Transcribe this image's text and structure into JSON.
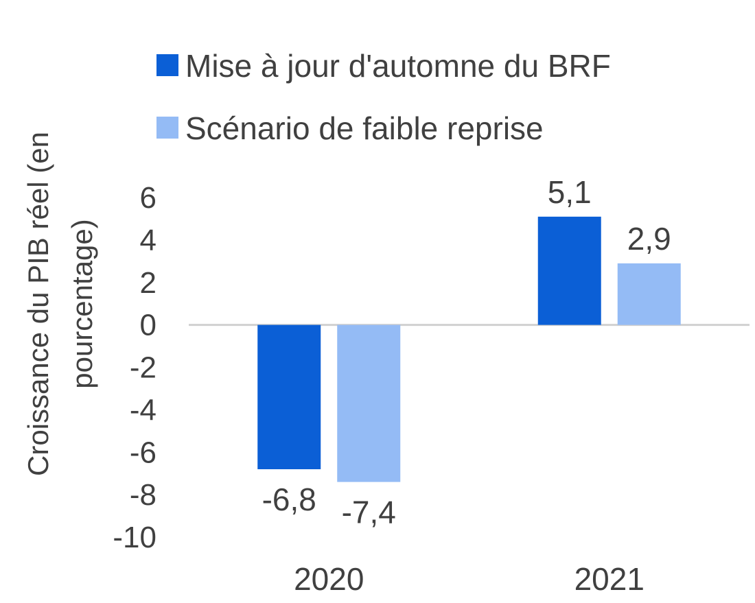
{
  "chart_data": {
    "type": "bar",
    "categories": [
      "2020",
      "2021"
    ],
    "series": [
      {
        "name": "Mise à jour d'automne du BRF",
        "values": [
          -6.8,
          5.1
        ],
        "labels": [
          "-6,8",
          "5,1"
        ],
        "color": "#0b5fd6"
      },
      {
        "name": "Scénario de faible reprise",
        "values": [
          -7.4,
          2.9
        ],
        "labels": [
          "-7,4",
          "2,9"
        ],
        "color": "#94bbf5"
      }
    ],
    "ylabel_lines": [
      "Croissance du PIB réel (en",
      "pourcentage)"
    ],
    "ylim": [
      -10,
      6
    ],
    "yticks": [
      6,
      4,
      2,
      0,
      -2,
      -4,
      -6,
      -8,
      -10
    ],
    "ytick_labels": [
      "6",
      "4",
      "2",
      "0",
      "-2",
      "-4",
      "-6",
      "-8",
      "-10"
    ],
    "legend_position": "top",
    "grid": false,
    "zero_line_color": "#d0d0d0",
    "text_color": "#404040"
  }
}
